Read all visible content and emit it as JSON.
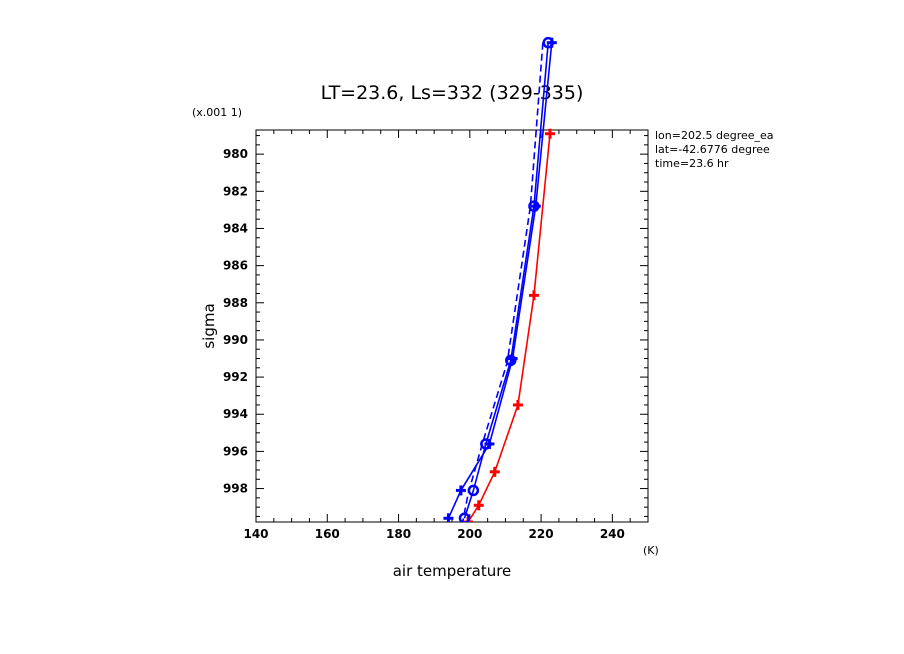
{
  "chart_data": {
    "type": "line",
    "title": "LT=23.6, Ls=332 (329-335)",
    "xlabel": "air temperature",
    "xunits": "(K)",
    "ylabel": "sigma",
    "yscale_label": "(x.001 1)",
    "xlim": [
      140,
      250
    ],
    "ylim": [
      999.8,
      978.7
    ],
    "y_inverted": true,
    "xticks": [
      "140",
      "160",
      "180",
      "200",
      "220",
      "240"
    ],
    "yticks": [
      "980",
      "982",
      "984",
      "986",
      "988",
      "990",
      "992",
      "994",
      "996",
      "998"
    ],
    "annotations": [
      "lon=202.5 degree_ea",
      "lat=-42.6776 degree",
      "time=23.6 hr"
    ],
    "series": [
      {
        "color": "#ff0000",
        "style": "solid",
        "marker": "plus",
        "x": [
          222.5,
          218.0,
          213.5,
          207.0,
          202.5,
          199.5
        ],
        "y": [
          978.9,
          987.6,
          993.5,
          997.1,
          998.9,
          999.8
        ]
      },
      {
        "color": "#0000ff",
        "style": "solid",
        "marker": "plus",
        "x": [
          223.0,
          218.5,
          212.0,
          205.5,
          197.5,
          194.0
        ],
        "y": [
          974.0,
          982.8,
          991.0,
          995.6,
          998.1,
          999.6
        ]
      },
      {
        "color": "#0000ff",
        "style": "solid",
        "marker": "circle",
        "x": [
          222.0,
          218.0,
          211.5,
          204.5,
          201.0,
          198.5
        ],
        "y": [
          974.0,
          982.8,
          991.1,
          995.6,
          998.1,
          999.6
        ]
      },
      {
        "color": "#0000ff",
        "style": "dashed",
        "marker": "none",
        "x": [
          220.5,
          217.0,
          210.5,
          203.5,
          199.5,
          198.0
        ],
        "y": [
          974.0,
          982.8,
          991.2,
          995.6,
          998.3,
          999.8
        ]
      }
    ]
  }
}
